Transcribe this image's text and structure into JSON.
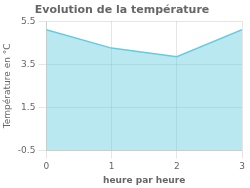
{
  "chart_data": {
    "type": "area",
    "title": "Evolution de la température",
    "xlabel": "heure par heure",
    "ylabel": "Température en °C",
    "x": [
      0,
      1,
      2,
      3
    ],
    "values": [
      5.1,
      4.25,
      3.85,
      5.1
    ],
    "color": "#66ccdd",
    "xlim": [
      0,
      3
    ],
    "ylim": [
      -0.5,
      5.5
    ],
    "xticks": [
      0,
      1,
      2,
      3
    ],
    "yticks": [
      -0.5,
      1.5,
      3.5,
      5.5
    ],
    "grid": true
  }
}
